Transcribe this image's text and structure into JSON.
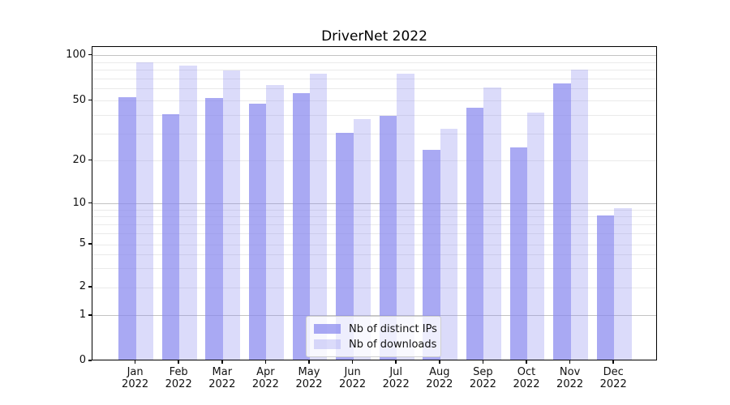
{
  "chart_data": {
    "type": "bar",
    "title": "DriverNet 2022",
    "categories": [
      "Jan",
      "Feb",
      "Mar",
      "Apr",
      "May",
      "Jun",
      "Jul",
      "Aug",
      "Sep",
      "Oct",
      "Nov",
      "Dec"
    ],
    "category_year": "2022",
    "series": [
      {
        "name": "Nb of distinct IPs",
        "color": "rgba(136,136,238,0.72)",
        "values": [
          52,
          40,
          51,
          47,
          55,
          30,
          39,
          23,
          44,
          24,
          64,
          8
        ]
      },
      {
        "name": "Nb of downloads",
        "color": "rgba(136,136,238,0.30)",
        "values": [
          88,
          84,
          78,
          62,
          74,
          37,
          74,
          32,
          60,
          41,
          79,
          9
        ]
      }
    ],
    "xlabel": "",
    "ylabel": "",
    "yscale": "symlog",
    "ylim": [
      0,
      112
    ],
    "yticks": [
      0,
      1,
      2,
      5,
      10,
      20,
      50,
      100
    ],
    "ytick_labels": [
      "0",
      "1",
      "2",
      "5",
      "10",
      "20",
      "50",
      "100"
    ],
    "minor_yticks": [
      3,
      4,
      6,
      7,
      8,
      9,
      30,
      40,
      60,
      70,
      80,
      90
    ],
    "major_grid_values": [
      1,
      10,
      100
    ],
    "grid": "both",
    "legend_position": "lower center"
  },
  "colors": {
    "bar_base": "#8888ee",
    "bar_distinct_ips": "rgba(136,136,238,0.72)",
    "bar_downloads": "rgba(136,136,238,0.30)",
    "major_grid": "#c3c3c3",
    "minor_grid": "#eaeaea",
    "spine": "#000000",
    "text": "#111111",
    "legend_border": "#cfcfcf",
    "legend_bg": "rgba(255,255,255,0.8)"
  }
}
